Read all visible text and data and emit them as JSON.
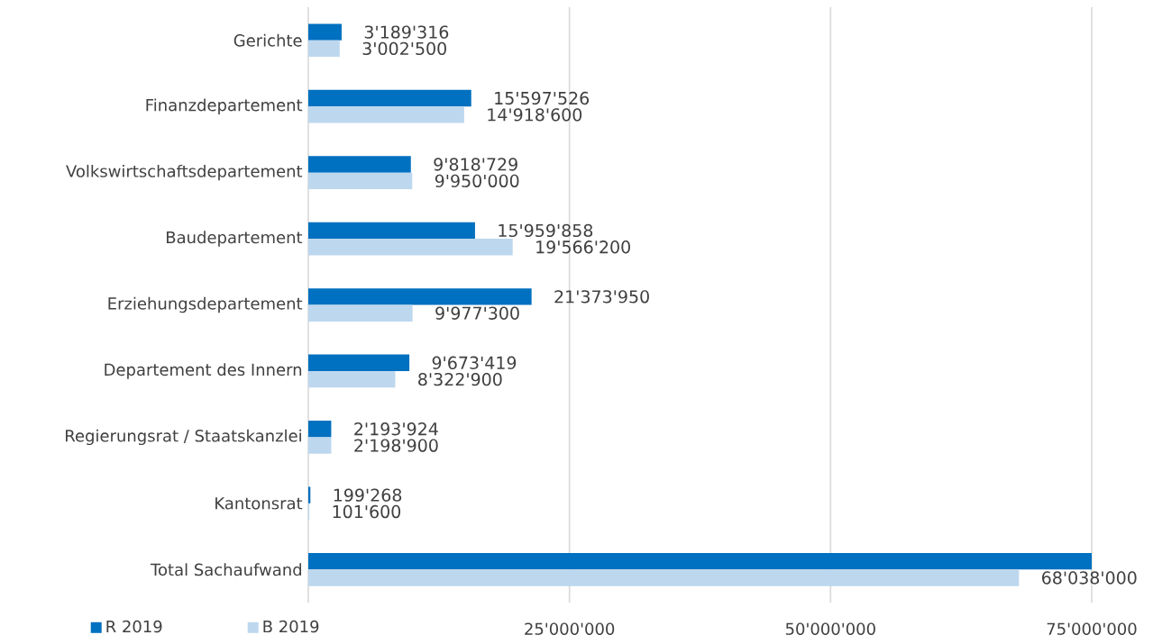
{
  "chart_data": {
    "type": "bar",
    "orientation": "horizontal",
    "categories": [
      "Gerichte",
      "Finanzdepartement",
      "Volkswirtschaftsdepartement",
      "Baudepartement",
      "Erziehungsdepartement",
      "Departement des Innern",
      "Regierungsrat / Staatskanzlei",
      "Kantonsrat",
      "Total Sachaufwand"
    ],
    "series": [
      {
        "name": "R 2019",
        "color": "#0070c0",
        "values": [
          3189316,
          15597526,
          9818729,
          15959858,
          21373950,
          9673419,
          2193924,
          199268,
          75000000
        ],
        "value_labels": [
          "3'189'316",
          "15'597'526",
          "9'818'729",
          "15'959'858",
          "21'373'950",
          "9'673'419",
          "2'193'924",
          "199'268",
          null
        ]
      },
      {
        "name": "B 2019",
        "color": "#bdd7ee",
        "values": [
          3002500,
          14918600,
          9950000,
          19566200,
          9977300,
          8322900,
          2198900,
          101600,
          68038000
        ],
        "value_labels": [
          "3'002'500",
          "14'918'600",
          "9'950'000",
          "19'566'200",
          "9'977'300",
          "8'322'900",
          "2'198'900",
          "101'600",
          "68'038'000"
        ]
      }
    ],
    "xlim": [
      0,
      75000000
    ],
    "xticks": [
      {
        "value": 0,
        "label": null
      },
      {
        "value": 25000000,
        "label": "25'000'000"
      },
      {
        "value": 50000000,
        "label": "50'000'000"
      },
      {
        "value": 75000000,
        "label": "75'000'000"
      }
    ],
    "grid": "x",
    "legend": "bottom left"
  }
}
